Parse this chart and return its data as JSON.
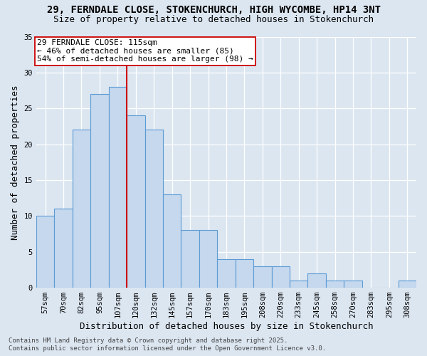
{
  "title_line1": "29, FERNDALE CLOSE, STOKENCHURCH, HIGH WYCOMBE, HP14 3NT",
  "title_line2": "Size of property relative to detached houses in Stokenchurch",
  "xlabel": "Distribution of detached houses by size in Stokenchurch",
  "ylabel": "Number of detached properties",
  "categories": [
    "57sqm",
    "70sqm",
    "82sqm",
    "95sqm",
    "107sqm",
    "120sqm",
    "132sqm",
    "145sqm",
    "157sqm",
    "170sqm",
    "183sqm",
    "195sqm",
    "208sqm",
    "220sqm",
    "233sqm",
    "245sqm",
    "258sqm",
    "270sqm",
    "283sqm",
    "295sqm",
    "308sqm"
  ],
  "values": [
    10,
    11,
    22,
    27,
    28,
    24,
    22,
    13,
    8,
    8,
    4,
    4,
    3,
    3,
    1,
    2,
    1,
    1,
    0,
    0,
    1
  ],
  "bar_color": "#c5d8ed",
  "bar_edge_color": "#5b9bd5",
  "background_color": "#dce6f1",
  "grid_color": "#ffffff",
  "vline_x": 5,
  "vline_color": "#cc0000",
  "annotation_line1": "29 FERNDALE CLOSE: 115sqm",
  "annotation_line2": "← 46% of detached houses are smaller (85)",
  "annotation_line3": "54% of semi-detached houses are larger (98) →",
  "annotation_box_color": "#ffffff",
  "annotation_box_edge": "#cc0000",
  "ylim": [
    0,
    35
  ],
  "yticks": [
    0,
    5,
    10,
    15,
    20,
    25,
    30,
    35
  ],
  "footer_line1": "Contains HM Land Registry data © Crown copyright and database right 2025.",
  "footer_line2": "Contains public sector information licensed under the Open Government Licence v3.0.",
  "title_fontsize": 10,
  "subtitle_fontsize": 9,
  "axis_label_fontsize": 9,
  "tick_fontsize": 7.5,
  "annotation_fontsize": 8,
  "footer_fontsize": 6.5
}
